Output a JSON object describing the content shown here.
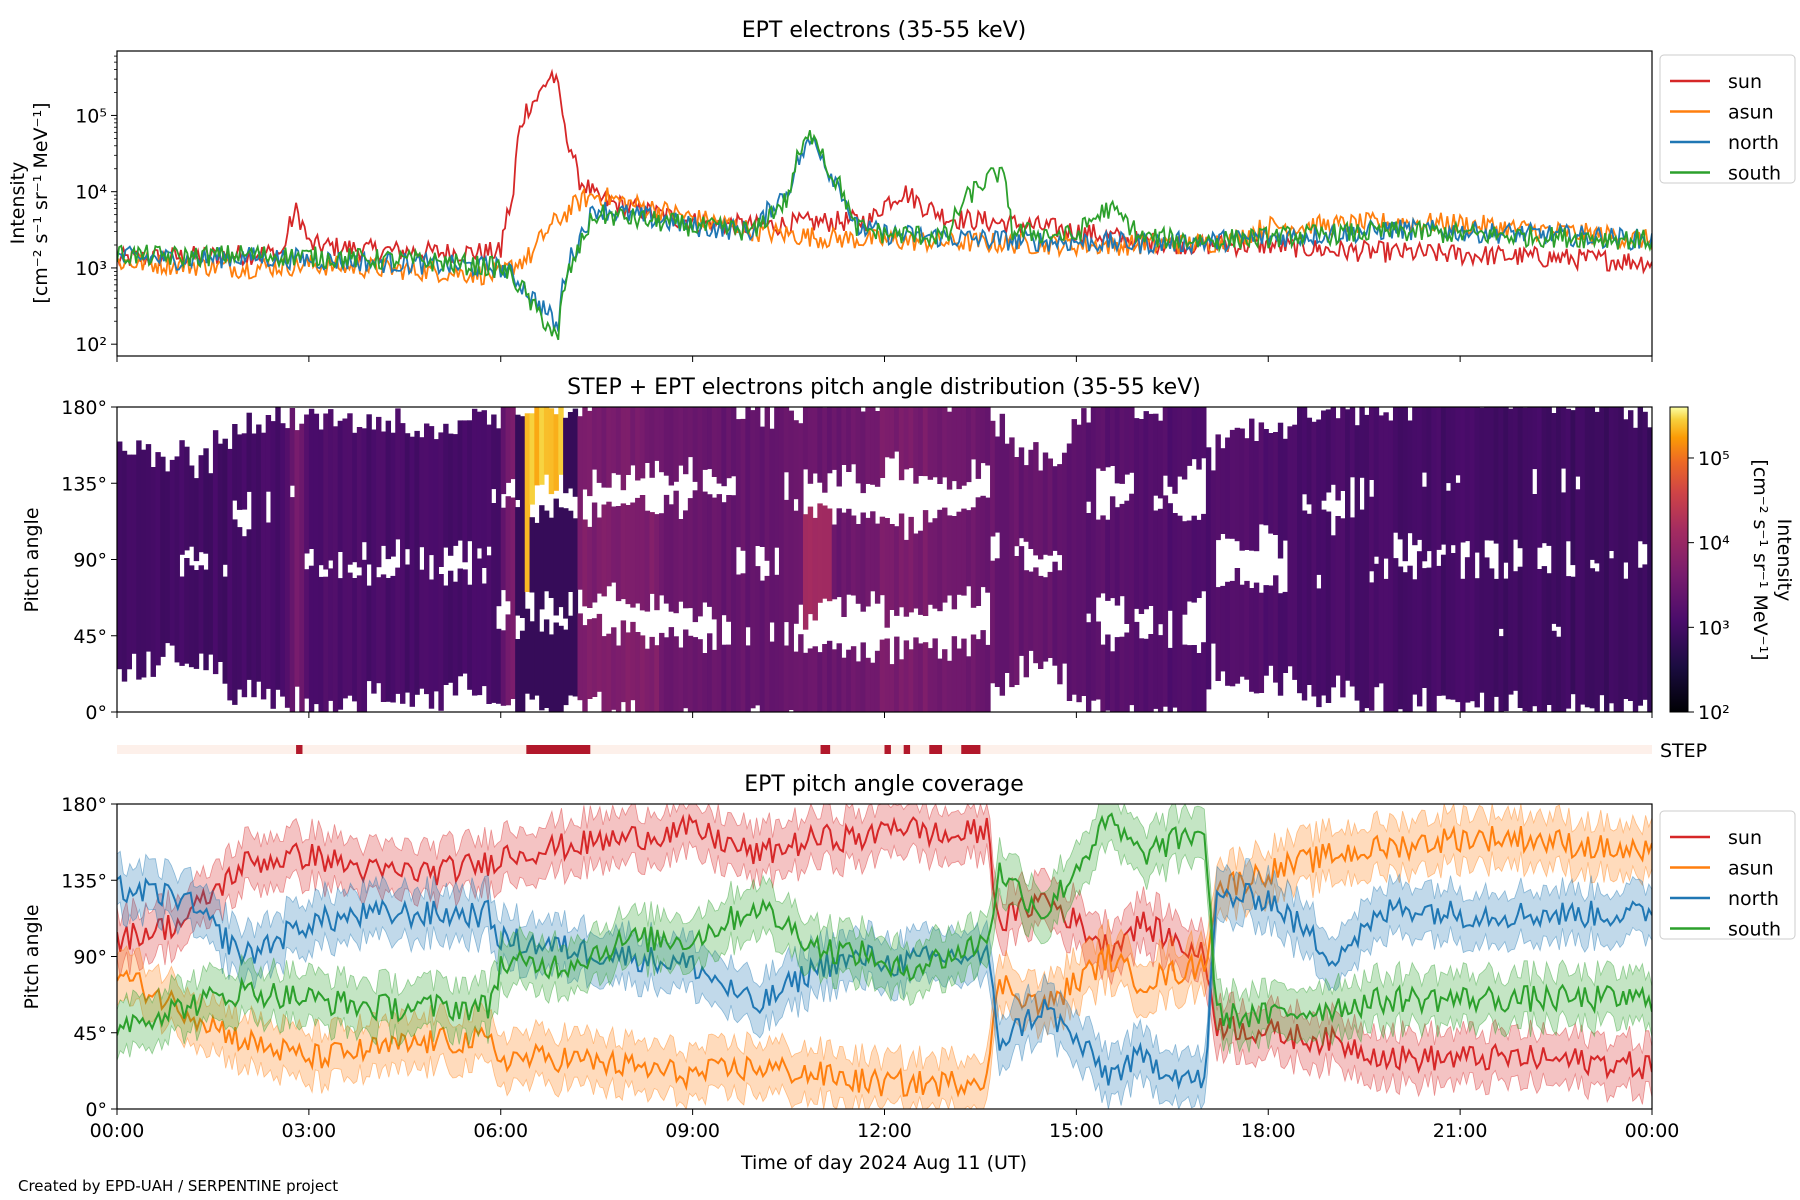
{
  "footer": "Created by EPD-UAH / SERPENTINE project",
  "chart_data": [
    {
      "type": "line",
      "title": "EPT electrons (35-55 keV)",
      "ylabel_line1": "Intensity",
      "ylabel_line2": "[cm⁻² s⁻¹ sr⁻¹ MeV⁻¹]",
      "yscale": "log",
      "ylim": [
        70,
        700000
      ],
      "yticks": [
        {
          "value": 100,
          "label": "10²"
        },
        {
          "value": 1000,
          "label": "10³"
        },
        {
          "value": 10000,
          "label": "10⁴"
        },
        {
          "value": 100000,
          "label": "10⁵"
        }
      ],
      "x_unit": "hours since 00:00 (2024 Aug 11)",
      "xlim": [
        0,
        24
      ],
      "legend": "outside-right",
      "series": [
        {
          "name": "sun",
          "color": "#d62728",
          "x": [
            0,
            1,
            2,
            2.6,
            2.8,
            3,
            4,
            5,
            6,
            6.2,
            6.4,
            6.6,
            6.8,
            7.0,
            7.2,
            7.5,
            8,
            9,
            10,
            11,
            11.8,
            12,
            12.3,
            12.6,
            13,
            14,
            15,
            16,
            17,
            18,
            19,
            20,
            21,
            22,
            23,
            24
          ],
          "y": [
            1300,
            1400,
            1500,
            1600,
            5500,
            2000,
            1700,
            1600,
            1600,
            8000,
            120000,
            180000,
            350000,
            60000,
            15000,
            8000,
            6000,
            4000,
            3500,
            4000,
            4200,
            7000,
            10000,
            6500,
            4500,
            3800,
            3000,
            2200,
            2000,
            2000,
            1700,
            1600,
            1500,
            1400,
            1300,
            1200
          ]
        },
        {
          "name": "asun",
          "color": "#ff7f0e",
          "x": [
            0,
            1,
            2,
            3,
            4,
            5,
            6,
            6.5,
            7,
            7.3,
            7.5,
            8,
            9,
            10,
            11,
            12,
            13,
            14,
            15,
            16,
            17,
            17.5,
            18,
            19,
            20,
            21,
            22,
            23,
            24
          ],
          "y": [
            1200,
            1100,
            1000,
            1100,
            1000,
            900,
            800,
            1500,
            5000,
            8000,
            9000,
            7000,
            4500,
            3000,
            2500,
            2300,
            2200,
            2100,
            2000,
            2000,
            2100,
            2400,
            3500,
            3600,
            4000,
            3800,
            3200,
            2800,
            2300
          ]
        },
        {
          "name": "north",
          "color": "#1f77b4",
          "x": [
            0,
            1,
            2,
            3,
            4,
            5,
            6,
            6.5,
            6.9,
            7.2,
            7.5,
            8,
            9,
            10,
            10.5,
            10.9,
            11.1,
            11.5,
            12,
            13,
            14,
            15,
            16,
            17,
            18,
            19,
            20,
            21,
            22,
            23,
            24
          ],
          "y": [
            1400,
            1300,
            1400,
            1300,
            1200,
            1100,
            1000,
            400,
            150,
            2000,
            6000,
            5000,
            3500,
            3000,
            10000,
            50000,
            20000,
            3500,
            2800,
            2500,
            2300,
            2200,
            2100,
            2200,
            2500,
            2800,
            3200,
            3000,
            2800,
            2600,
            2300
          ]
        },
        {
          "name": "south",
          "color": "#2ca02c",
          "x": [
            0,
            1,
            2,
            3,
            4,
            5,
            6,
            6.5,
            6.9,
            7.2,
            7.5,
            8,
            9,
            10,
            10.5,
            10.9,
            11.1,
            11.5,
            12,
            13,
            13.8,
            14,
            15,
            15.5,
            16,
            17,
            18,
            19,
            20,
            21,
            22,
            23,
            24
          ],
          "y": [
            1500,
            1400,
            1500,
            1400,
            1300,
            1200,
            1000,
            300,
            100,
            1500,
            5000,
            4500,
            3500,
            3000,
            8000,
            60000,
            20000,
            3500,
            2800,
            2600,
            18000,
            3000,
            2600,
            6000,
            2500,
            2300,
            2500,
            2800,
            3000,
            2800,
            2600,
            2500,
            2300
          ]
        }
      ]
    },
    {
      "type": "heatmap",
      "title": "STEP + EPT electrons pitch angle distribution (35-55 keV)",
      "ylabel": "Pitch angle",
      "yticks": [
        "0°",
        "45°",
        "90°",
        "135°",
        "180°"
      ],
      "ylim": [
        0,
        180
      ],
      "colorbar": {
        "label_line1": "Intensity",
        "label_line2": "[cm⁻² s⁻¹ sr⁻¹ MeV⁻¹]",
        "scale": "log",
        "range": [
          100,
          400000
        ],
        "colormap": "inferno",
        "ticks": [
          {
            "value": 100,
            "label": "10²"
          },
          {
            "value": 1000,
            "label": "10³"
          },
          {
            "value": 10000,
            "label": "10⁴"
          },
          {
            "value": 100000,
            "label": "10⁵"
          }
        ]
      },
      "high_intensity_regions": [
        {
          "hours": [
            6.4,
            7.0
          ],
          "pitch_deg": [
            135,
            180
          ],
          "intensity": 300000
        },
        {
          "hours": [
            10.7,
            11.2
          ],
          "pitch_deg": [
            60,
            110
          ],
          "intensity": 15000
        },
        {
          "hours": [
            7.3,
            8.5
          ],
          "pitch_deg": [
            20,
            120
          ],
          "intensity": 6000
        }
      ],
      "step_bar": {
        "label": "STEP",
        "active_intervals_hours": [
          [
            2.8,
            2.9
          ],
          [
            6.4,
            7.4
          ],
          [
            11.0,
            11.15
          ],
          [
            12.0,
            12.1
          ],
          [
            12.3,
            12.4
          ],
          [
            12.7,
            12.9
          ],
          [
            13.2,
            13.5
          ]
        ]
      }
    },
    {
      "type": "line",
      "title": "EPT pitch angle coverage",
      "ylabel": "Pitch angle",
      "xlabel": "Time of day 2024 Aug 11 (UT)",
      "ylim": [
        0,
        180
      ],
      "yticks": [
        "0°",
        "45°",
        "90°",
        "135°",
        "180°"
      ],
      "xticks": [
        "00:00",
        "03:00",
        "06:00",
        "09:00",
        "12:00",
        "15:00",
        "18:00",
        "21:00",
        "00:00"
      ],
      "legend": "outside-right",
      "series": [
        {
          "name": "sun",
          "color": "#d62728",
          "x": [
            0,
            1,
            2,
            3,
            4,
            5,
            5.8,
            6.0,
            7,
            8,
            9,
            10,
            11,
            11.9,
            12.0,
            13,
            13.6,
            13.8,
            14.5,
            15.5,
            16,
            17,
            17.2,
            18,
            19,
            20,
            21,
            22,
            23,
            24
          ],
          "y": [
            100,
            110,
            145,
            150,
            140,
            140,
            145,
            150,
            155,
            160,
            165,
            150,
            160,
            160,
            170,
            160,
            165,
            110,
            125,
            95,
            110,
            90,
            50,
            45,
            40,
            30,
            30,
            30,
            28,
            25
          ]
        },
        {
          "name": "asun",
          "color": "#ff7f0e",
          "x": [
            0,
            1,
            2,
            3,
            4,
            5,
            5.8,
            6.0,
            7,
            8,
            9,
            10,
            11,
            11.9,
            12.0,
            13,
            13.6,
            13.8,
            14.5,
            15.5,
            16,
            17,
            17.2,
            18,
            19,
            20,
            21,
            22,
            23,
            24
          ],
          "y": [
            80,
            60,
            40,
            30,
            35,
            40,
            40,
            30,
            30,
            25,
            20,
            25,
            20,
            15,
            15,
            15,
            20,
            75,
            60,
            90,
            75,
            85,
            130,
            140,
            150,
            155,
            160,
            160,
            155,
            150
          ]
        },
        {
          "name": "north",
          "color": "#1f77b4",
          "x": [
            0,
            1,
            2,
            3,
            4,
            5,
            5.8,
            6.0,
            7,
            8,
            9,
            10,
            11,
            11.9,
            12.0,
            13,
            13.6,
            13.8,
            14.5,
            15.5,
            16,
            17,
            17.2,
            18,
            19,
            20,
            21,
            22,
            23,
            24
          ],
          "y": [
            130,
            125,
            90,
            110,
            115,
            115,
            115,
            100,
            95,
            90,
            85,
            60,
            85,
            90,
            85,
            90,
            90,
            40,
            60,
            20,
            30,
            15,
            125,
            125,
            90,
            120,
            115,
            115,
            115,
            115
          ]
        },
        {
          "name": "south",
          "color": "#2ca02c",
          "x": [
            0,
            1,
            2,
            3,
            4,
            5,
            5.8,
            6.0,
            7,
            8,
            9,
            10,
            11,
            11.9,
            12.0,
            13,
            13.6,
            13.8,
            14.5,
            15.5,
            16,
            17,
            17.2,
            18,
            19,
            20,
            21,
            22,
            23,
            24
          ],
          "y": [
            50,
            60,
            70,
            65,
            60,
            60,
            60,
            85,
            85,
            100,
            100,
            120,
            95,
            90,
            80,
            90,
            100,
            140,
            115,
            170,
            150,
            165,
            55,
            55,
            60,
            65,
            65,
            65,
            65,
            65
          ]
        }
      ]
    }
  ]
}
